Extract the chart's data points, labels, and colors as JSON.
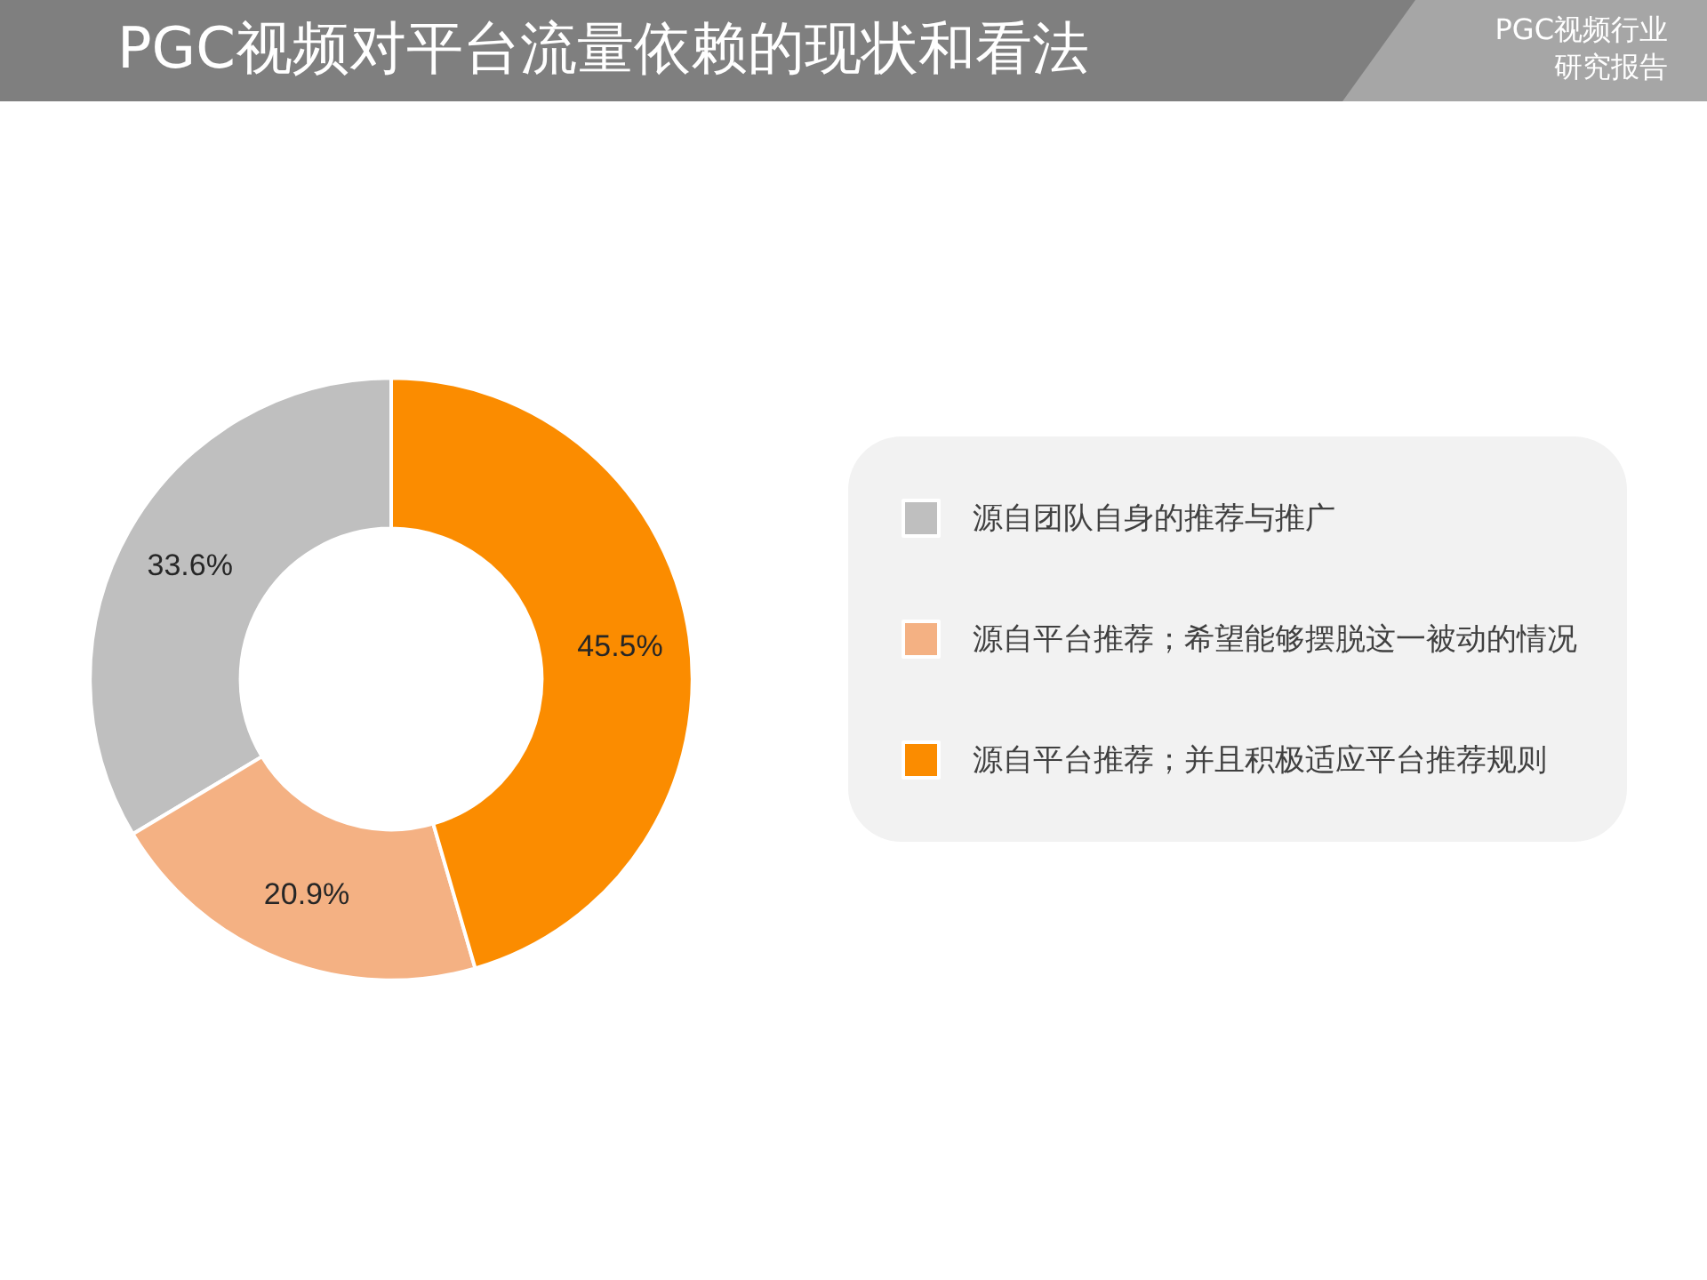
{
  "chart_data": {
    "type": "donut",
    "title": "PGC视频对平台流量依赖的现状和看法",
    "subtitle": "PGC视频行业研究报告",
    "categories": [
      "源自团队自身的推荐与推广",
      "源自平台推荐；希望能够摆脱这一被动的情况",
      "源自平台推荐；并且积极适应平台推荐规则"
    ],
    "values": [
      33.6,
      20.9,
      45.5
    ],
    "colors": [
      "#bfbfbf",
      "#f4b183",
      "#fb8c00"
    ],
    "value_labels": [
      "33.6%",
      "20.9%",
      "45.5%"
    ],
    "legend": "right"
  }
}
